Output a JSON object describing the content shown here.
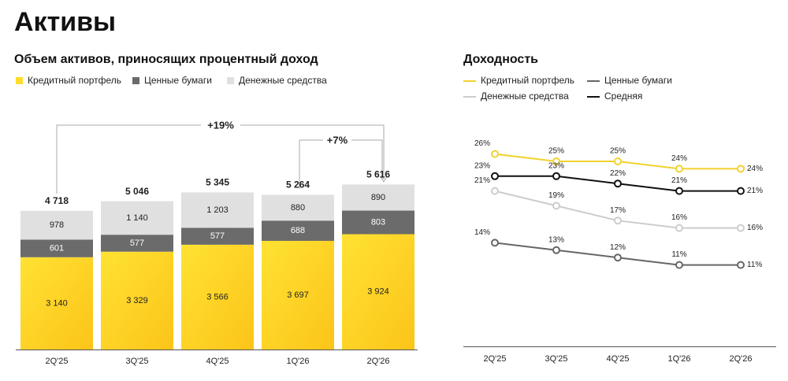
{
  "title": "Активы",
  "chart_data": [
    {
      "type": "bar",
      "stacked": true,
      "title": "Объем активов, приносящих процентный доход",
      "categories": [
        "2Q'25",
        "3Q'25",
        "4Q'25",
        "1Q'26",
        "2Q'26"
      ],
      "series": [
        {
          "name": "Кредитный портфель",
          "color": "#ffdd2d",
          "values": [
            3140,
            3329,
            3566,
            3697,
            3924
          ],
          "value_labels": [
            "3 140",
            "3 329",
            "3 566",
            "3 697",
            "3 924"
          ]
        },
        {
          "name": "Ценные бумаги",
          "color": "#6b6b6b",
          "values": [
            601,
            577,
            577,
            688,
            803
          ]
        },
        {
          "name": "Денежные средства",
          "color": "#e0e0e0",
          "values": [
            978,
            1140,
            1203,
            880,
            890
          ],
          "value_labels": [
            "978",
            "1 140",
            "1 203",
            "880",
            "890"
          ]
        }
      ],
      "totals": {
        "values": [
          4718,
          5046,
          5345,
          5264,
          5616
        ],
        "value_labels": [
          "4 718",
          "5 046",
          "5 345",
          "5 264",
          "5 616"
        ]
      },
      "annotations": [
        "+19%",
        "+7%"
      ],
      "ylim": [
        0,
        6000
      ]
    },
    {
      "type": "line",
      "title": "Доходность",
      "categories": [
        "2Q'25",
        "3Q'25",
        "4Q'25",
        "1Q'26",
        "2Q'26"
      ],
      "series": [
        {
          "name": "Кредитный портфель",
          "color": "#f2d230",
          "values": [
            26,
            25,
            25,
            24,
            24
          ],
          "value_labels": [
            "26%",
            "25%",
            "25%",
            "24%",
            "24%"
          ]
        },
        {
          "name": "Ценные бумаги",
          "color": "#666666",
          "values": [
            14,
            13,
            12,
            11,
            11
          ],
          "value_labels": [
            "14%",
            "13%",
            "12%",
            "11%",
            "11%"
          ]
        },
        {
          "name": "Денежные средства",
          "color": "#cccccc",
          "values": [
            21,
            19,
            17,
            16,
            16
          ],
          "value_labels": [
            "21%",
            "19%",
            "17%",
            "16%",
            "16%"
          ]
        },
        {
          "name": "Средняя",
          "color": "#111111",
          "values": [
            23,
            23,
            22,
            21,
            21
          ],
          "value_labels": [
            "23%",
            "23%",
            "22%",
            "21%",
            "21%"
          ]
        }
      ],
      "ylim": [
        0,
        30
      ]
    }
  ]
}
